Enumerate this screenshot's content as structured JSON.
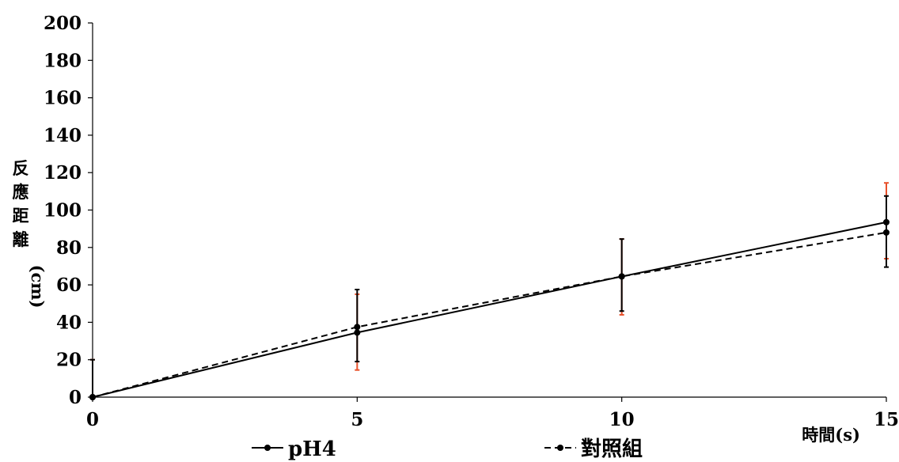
{
  "chart_data": {
    "type": "line",
    "x": [
      0,
      5,
      10,
      15
    ],
    "xlabel": "時間(s)",
    "ylabel": "反應距離(cm)",
    "ylabel_parts": [
      "反",
      "應",
      "距",
      "離",
      "(cm)"
    ],
    "xlim": [
      0,
      15
    ],
    "ylim": [
      0,
      200
    ],
    "xticks": [
      "0",
      "5",
      "10",
      "15"
    ],
    "yticks": [
      "0",
      "20",
      "40",
      "60",
      "80",
      "100",
      "120",
      "140",
      "160",
      "180",
      "200"
    ],
    "grid": false,
    "legend_position": "bottom",
    "series": [
      {
        "name": "pH4",
        "style": "solid",
        "color": "#000000",
        "errorbar_color": "#000000",
        "values": [
          0,
          34.5,
          64.5,
          93.5
        ],
        "error_low": [
          0,
          15.5,
          18.5,
          24
        ],
        "error_high": [
          20,
          23,
          20,
          14
        ]
      },
      {
        "name": "對照組",
        "style": "dashed",
        "color": "#000000",
        "errorbar_color": "#e8502a",
        "values": [
          0,
          37.5,
          64.5,
          88
        ],
        "error_low": [
          0,
          23,
          20.5,
          14
        ],
        "error_high": [
          20,
          17.5,
          20,
          26.5
        ]
      }
    ]
  }
}
